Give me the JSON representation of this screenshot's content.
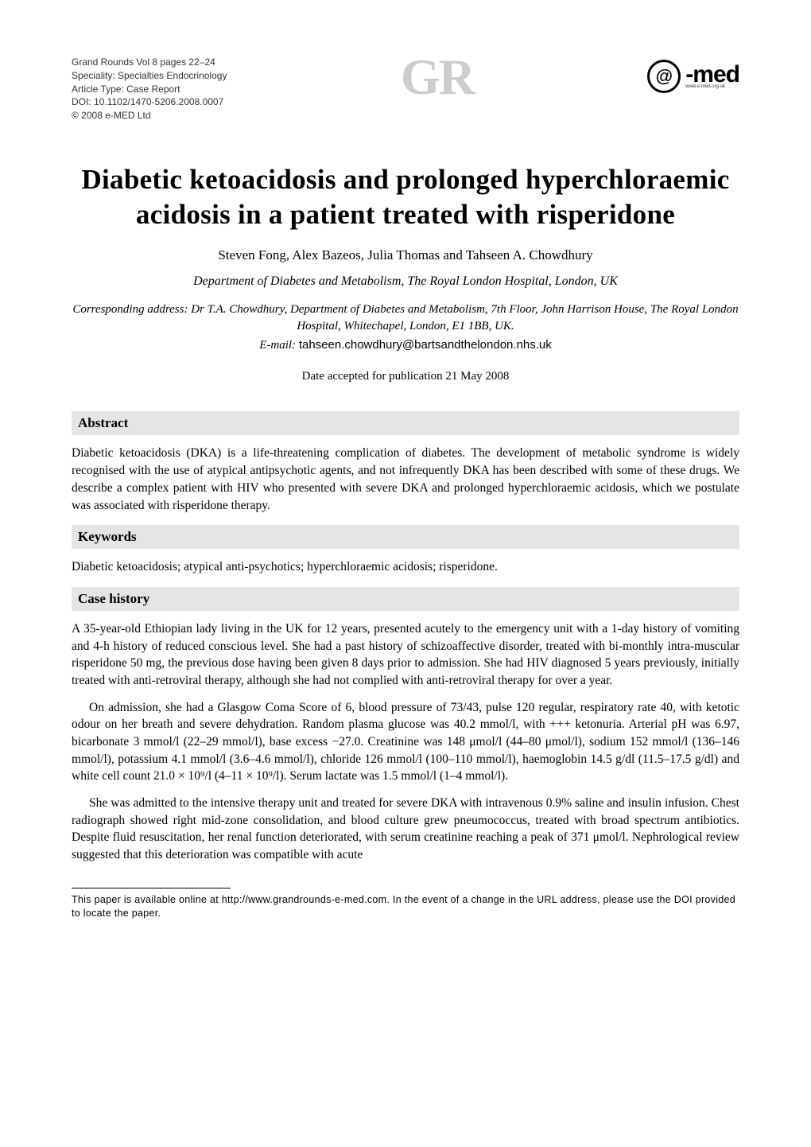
{
  "meta": {
    "line1": "Grand Rounds Vol 8 pages 22–24",
    "line2": "Speciality: Specialties Endocrinology",
    "line3": "Article Type: Case Report",
    "line4": "DOI: 10.1102/1470-5206.2008.0007",
    "line5": "© 2008 e-MED Ltd"
  },
  "logo_center": "GR",
  "logo_right": {
    "circle": "@",
    "text": "-med",
    "url": "www.e-med.org.uk"
  },
  "title": "Diabetic ketoacidosis and prolonged hyperchloraemic acidosis in a patient treated with risperidone",
  "authors": "Steven Fong, Alex Bazeos, Julia Thomas and Tahseen A. Chowdhury",
  "affiliation": "Department of Diabetes and Metabolism, The Royal London Hospital, London, UK",
  "correspondence": "Corresponding address: Dr T.A. Chowdhury, Department of Diabetes and Metabolism, 7th Floor, John Harrison House, The Royal London Hospital, Whitechapel, London, E1 1BB, UK.",
  "email_label": "E-mail: ",
  "email": "tahseen.chowdhury@bartsandthelondon.nhs.uk",
  "accepted": "Date accepted for publication 21 May 2008",
  "sections": {
    "abstract_h": "Abstract",
    "abstract": "Diabetic ketoacidosis (DKA) is a life-threatening complication of diabetes. The development of metabolic syndrome is widely recognised with the use of atypical antipsychotic agents, and not infrequently DKA has been described with some of these drugs. We describe a complex patient with HIV who presented with severe DKA and prolonged hyperchloraemic acidosis, which we postulate was associated with risperidone therapy.",
    "keywords_h": "Keywords",
    "keywords": "Diabetic ketoacidosis; atypical anti-psychotics; hyperchloraemic acidosis; risperidone.",
    "case_h": "Case history",
    "case_p1": "A 35-year-old Ethiopian lady living in the UK for 12 years, presented acutely to the emergency unit with a 1-day history of vomiting and 4-h history of reduced conscious level. She had a past history of schizoaffective disorder, treated with bi-monthly intra-muscular risperidone 50 mg, the previous dose having been given 8 days prior to admission. She had HIV diagnosed 5 years previously, initially treated with anti-retroviral therapy, although she had not complied with anti-retroviral therapy for over a year.",
    "case_p2": "On admission, she had a Glasgow Coma Score of 6, blood pressure of 73/43, pulse 120 regular, respiratory rate 40, with ketotic odour on her breath and severe dehydration. Random plasma glucose was 40.2 mmol/l, with +++ ketonuria. Arterial pH was 6.97, bicarbonate 3 mmol/l (22–29 mmol/l), base excess −27.0. Creatinine was 148 μmol/l (44–80 μmol/l), sodium 152 mmol/l (136–146 mmol/l), potassium 4.1 mmol/l (3.6–4.6 mmol/l), chloride 126 mmol/l (100–110 mmol/l), haemoglobin 14.5 g/dl (11.5–17.5 g/dl) and white cell count 21.0 × 10⁹/l (4–11 × 10⁹/l). Serum lactate was 1.5 mmol/l (1–4 mmol/l).",
    "case_p3": "She was admitted to the intensive therapy unit and treated for severe DKA with intravenous 0.9% saline and insulin infusion. Chest radiograph showed right mid-zone consolidation, and blood culture grew pneumococcus, treated with broad spectrum antibiotics. Despite fluid resuscitation, her renal function deteriorated, with serum creatinine reaching a peak of 371 μmol/l. Nephrological review suggested that this deterioration was compatible with acute"
  },
  "footer": "This paper is available online at http://www.grandrounds-e-med.com. In the event of a change in the URL address, please use the DOI provided to locate the paper.",
  "styles": {
    "page_bg": "#ffffff",
    "text_color": "#000000",
    "section_bg": "#e5e5e5",
    "logo_grey": "#cccccc",
    "meta_fontsize": 12,
    "title_fontsize": 35,
    "body_fontsize": 15.5,
    "section_fontsize": 17,
    "footer_fontsize": 12.5
  }
}
